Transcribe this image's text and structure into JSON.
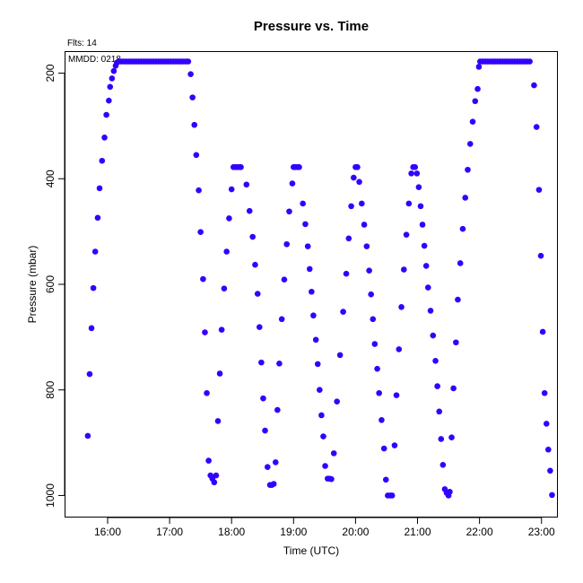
{
  "chart_data": {
    "type": "scatter",
    "title": "Pressure  vs. Time",
    "xlabel": "Time (UTC)",
    "ylabel": "Pressure (mbar)",
    "annotations": [
      "Flts: 14",
      "MMDD: 0218"
    ],
    "xlim": [
      15.32,
      23.25
    ],
    "ylim": [
      1040,
      160
    ],
    "y_reversed": true,
    "grid": false,
    "legend": "none",
    "marker_color": "#3300ff",
    "x_ticks": [
      {
        "value": 16,
        "label": "16:00"
      },
      {
        "value": 17,
        "label": "17:00"
      },
      {
        "value": 18,
        "label": "18:00"
      },
      {
        "value": 19,
        "label": "19:00"
      },
      {
        "value": 20,
        "label": "20:00"
      },
      {
        "value": 21,
        "label": "21:00"
      },
      {
        "value": 22,
        "label": "22:00"
      },
      {
        "value": 23,
        "label": "23:00"
      }
    ],
    "y_ticks": [
      {
        "value": 200,
        "label": "200"
      },
      {
        "value": 400,
        "label": "400"
      },
      {
        "value": 600,
        "label": "600"
      },
      {
        "value": 800,
        "label": "800"
      },
      {
        "value": 1000,
        "label": "1000"
      }
    ],
    "points": [
      [
        15.68,
        887
      ],
      [
        15.71,
        770
      ],
      [
        15.74,
        683
      ],
      [
        15.77,
        607
      ],
      [
        15.8,
        538
      ],
      [
        15.84,
        474
      ],
      [
        15.87,
        418
      ],
      [
        15.91,
        366
      ],
      [
        15.95,
        322
      ],
      [
        15.98,
        279
      ],
      [
        16.02,
        252
      ],
      [
        16.04,
        226
      ],
      [
        16.07,
        210
      ],
      [
        16.1,
        196
      ],
      [
        16.13,
        186
      ],
      [
        16.15,
        180
      ],
      [
        16.18,
        178
      ],
      [
        16.22,
        178
      ],
      [
        16.26,
        178
      ],
      [
        16.3,
        178
      ],
      [
        16.34,
        178
      ],
      [
        16.38,
        178
      ],
      [
        16.42,
        178
      ],
      [
        16.46,
        178
      ],
      [
        16.5,
        178
      ],
      [
        16.54,
        178
      ],
      [
        16.58,
        178
      ],
      [
        16.62,
        178
      ],
      [
        16.66,
        178
      ],
      [
        16.7,
        178
      ],
      [
        16.74,
        178
      ],
      [
        16.78,
        178
      ],
      [
        16.82,
        178
      ],
      [
        16.86,
        178
      ],
      [
        16.9,
        178
      ],
      [
        16.94,
        178
      ],
      [
        16.98,
        178
      ],
      [
        17.02,
        178
      ],
      [
        17.06,
        178
      ],
      [
        17.1,
        178
      ],
      [
        17.14,
        178
      ],
      [
        17.18,
        178
      ],
      [
        17.22,
        178
      ],
      [
        17.26,
        178
      ],
      [
        17.3,
        178
      ],
      [
        17.34,
        202
      ],
      [
        17.37,
        246
      ],
      [
        17.4,
        298
      ],
      [
        17.43,
        355
      ],
      [
        17.47,
        422
      ],
      [
        17.5,
        501
      ],
      [
        17.54,
        590
      ],
      [
        17.57,
        691
      ],
      [
        17.6,
        806
      ],
      [
        17.63,
        934
      ],
      [
        17.66,
        962
      ],
      [
        17.69,
        968
      ],
      [
        17.72,
        975
      ],
      [
        17.75,
        962
      ],
      [
        17.78,
        859
      ],
      [
        17.81,
        769
      ],
      [
        17.84,
        686
      ],
      [
        17.88,
        608
      ],
      [
        17.92,
        538
      ],
      [
        17.96,
        475
      ],
      [
        18.0,
        420
      ],
      [
        18.03,
        378
      ],
      [
        18.06,
        378
      ],
      [
        18.09,
        378
      ],
      [
        18.12,
        378
      ],
      [
        18.15,
        378
      ],
      [
        18.24,
        411
      ],
      [
        18.29,
        461
      ],
      [
        18.34,
        510
      ],
      [
        18.38,
        563
      ],
      [
        18.42,
        618
      ],
      [
        18.45,
        681
      ],
      [
        18.48,
        748
      ],
      [
        18.51,
        816
      ],
      [
        18.54,
        877
      ],
      [
        18.58,
        946
      ],
      [
        18.62,
        980
      ],
      [
        18.65,
        980
      ],
      [
        18.68,
        978
      ],
      [
        18.71,
        937
      ],
      [
        18.74,
        838
      ],
      [
        18.77,
        750
      ],
      [
        18.81,
        666
      ],
      [
        18.85,
        591
      ],
      [
        18.89,
        524
      ],
      [
        18.93,
        462
      ],
      [
        18.98,
        409
      ],
      [
        19.0,
        378
      ],
      [
        19.03,
        378
      ],
      [
        19.06,
        378
      ],
      [
        19.09,
        378
      ],
      [
        19.15,
        447
      ],
      [
        19.19,
        486
      ],
      [
        19.23,
        528
      ],
      [
        19.26,
        571
      ],
      [
        19.29,
        614
      ],
      [
        19.32,
        659
      ],
      [
        19.36,
        705
      ],
      [
        19.39,
        751
      ],
      [
        19.42,
        800
      ],
      [
        19.45,
        848
      ],
      [
        19.48,
        888
      ],
      [
        19.51,
        944
      ],
      [
        19.55,
        968
      ],
      [
        19.58,
        968
      ],
      [
        19.61,
        969
      ],
      [
        19.65,
        920
      ],
      [
        19.7,
        822
      ],
      [
        19.75,
        734
      ],
      [
        19.8,
        652
      ],
      [
        19.85,
        580
      ],
      [
        19.89,
        513
      ],
      [
        19.93,
        452
      ],
      [
        19.97,
        398
      ],
      [
        20.0,
        378
      ],
      [
        20.03,
        378
      ],
      [
        20.06,
        406
      ],
      [
        20.1,
        447
      ],
      [
        20.14,
        487
      ],
      [
        20.18,
        528
      ],
      [
        20.22,
        574
      ],
      [
        20.25,
        619
      ],
      [
        20.28,
        666
      ],
      [
        20.31,
        713
      ],
      [
        20.35,
        760
      ],
      [
        20.38,
        806
      ],
      [
        20.42,
        857
      ],
      [
        20.46,
        911
      ],
      [
        20.49,
        970
      ],
      [
        20.52,
        1000
      ],
      [
        20.56,
        1000
      ],
      [
        20.59,
        1000
      ],
      [
        20.63,
        905
      ],
      [
        20.66,
        810
      ],
      [
        20.7,
        723
      ],
      [
        20.74,
        643
      ],
      [
        20.78,
        572
      ],
      [
        20.82,
        506
      ],
      [
        20.86,
        447
      ],
      [
        20.9,
        390
      ],
      [
        20.93,
        378
      ],
      [
        20.96,
        378
      ],
      [
        20.99,
        390
      ],
      [
        21.02,
        416
      ],
      [
        21.05,
        452
      ],
      [
        21.08,
        487
      ],
      [
        21.11,
        527
      ],
      [
        21.14,
        565
      ],
      [
        21.17,
        606
      ],
      [
        21.21,
        650
      ],
      [
        21.25,
        697
      ],
      [
        21.29,
        745
      ],
      [
        21.32,
        793
      ],
      [
        21.35,
        841
      ],
      [
        21.38,
        893
      ],
      [
        21.41,
        942
      ],
      [
        21.44,
        988
      ],
      [
        21.47,
        995
      ],
      [
        21.5,
        1000
      ],
      [
        21.52,
        993
      ],
      [
        21.55,
        890
      ],
      [
        21.58,
        797
      ],
      [
        21.62,
        710
      ],
      [
        21.65,
        629
      ],
      [
        21.69,
        560
      ],
      [
        21.73,
        495
      ],
      [
        21.77,
        436
      ],
      [
        21.81,
        383
      ],
      [
        21.85,
        334
      ],
      [
        21.89,
        292
      ],
      [
        21.93,
        253
      ],
      [
        21.97,
        230
      ],
      [
        21.99,
        188
      ],
      [
        22.01,
        178
      ],
      [
        22.05,
        178
      ],
      [
        22.09,
        178
      ],
      [
        22.13,
        178
      ],
      [
        22.17,
        178
      ],
      [
        22.21,
        178
      ],
      [
        22.25,
        178
      ],
      [
        22.29,
        178
      ],
      [
        22.33,
        178
      ],
      [
        22.37,
        178
      ],
      [
        22.41,
        178
      ],
      [
        22.45,
        178
      ],
      [
        22.49,
        178
      ],
      [
        22.53,
        178
      ],
      [
        22.57,
        178
      ],
      [
        22.61,
        178
      ],
      [
        22.65,
        178
      ],
      [
        22.69,
        178
      ],
      [
        22.73,
        178
      ],
      [
        22.77,
        178
      ],
      [
        22.81,
        178
      ],
      [
        22.88,
        223
      ],
      [
        22.92,
        302
      ],
      [
        22.96,
        421
      ],
      [
        22.99,
        546
      ],
      [
        23.02,
        690
      ],
      [
        23.05,
        806
      ],
      [
        23.08,
        864
      ],
      [
        23.11,
        913
      ],
      [
        23.14,
        953
      ],
      [
        23.17,
        999
      ]
    ]
  }
}
